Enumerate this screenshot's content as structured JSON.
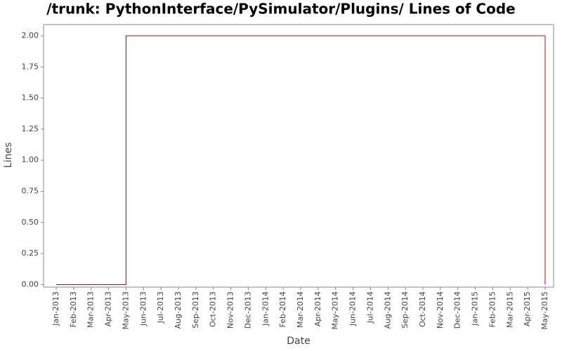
{
  "chart_data": {
    "type": "line",
    "title": "/trunk: PythonInterface/PySimulator/Plugins/ Lines of Code",
    "x_label": "Date",
    "y_label": "Lines",
    "xticks": [
      "Jan-2013",
      "Feb-2013",
      "Mar-2013",
      "Apr-2013",
      "May-2013",
      "Jun-2013",
      "Jul-2013",
      "Aug-2013",
      "Sep-2013",
      "Oct-2013",
      "Nov-2013",
      "Dec-2013",
      "Jan-2014",
      "Feb-2014",
      "Mar-2014",
      "Apr-2014",
      "May-2014",
      "Jun-2014",
      "Jul-2014",
      "Aug-2014",
      "Sep-2014",
      "Oct-2014",
      "Nov-2014",
      "Dec-2014",
      "Jan-2015",
      "Feb-2015",
      "Mar-2015",
      "Apr-2015",
      "May-2015"
    ],
    "x": [
      "Jan-2013",
      "May-2013",
      "May-2013",
      "May-2015",
      "May-2015"
    ],
    "series": [
      {
        "color": "#cc0000",
        "values": [
          0,
          0,
          2,
          2,
          0
        ]
      }
    ],
    "ylim": [
      -0.02,
      2.09
    ],
    "yticks": [
      {
        "value": 0,
        "label": "0.00"
      },
      {
        "value": 0.25,
        "label": "0.25"
      },
      {
        "value": 0.5,
        "label": "0.50"
      },
      {
        "value": 0.75,
        "label": "0.75"
      },
      {
        "value": 1,
        "label": "1.00"
      },
      {
        "value": 1.25,
        "label": "1.25"
      },
      {
        "value": 1.5,
        "label": "1.50"
      },
      {
        "value": 1.75,
        "label": "1.75"
      },
      {
        "value": 2,
        "label": "2.00"
      }
    ],
    "grid": false
  }
}
